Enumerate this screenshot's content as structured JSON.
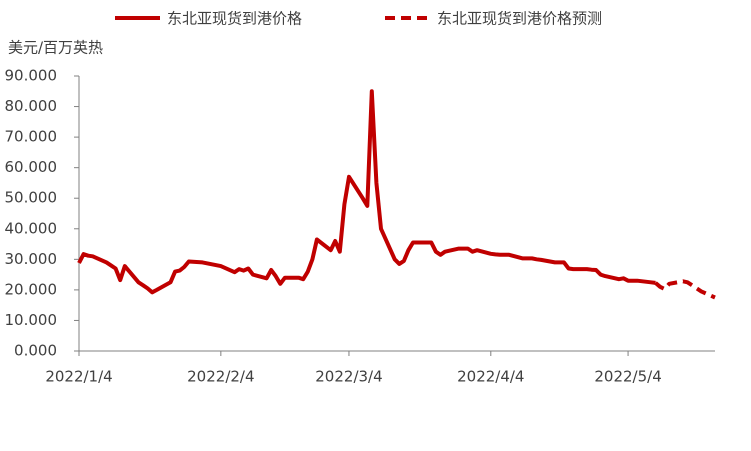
{
  "chart_data": {
    "type": "line",
    "y_label": "美元/百万英热",
    "x": [
      "2022/1/4",
      "2022/1/5",
      "2022/1/6",
      "2022/1/7",
      "2022/1/10",
      "2022/1/11",
      "2022/1/12",
      "2022/1/13",
      "2022/1/14",
      "2022/1/17",
      "2022/1/18",
      "2022/1/19",
      "2022/1/20",
      "2022/1/21",
      "2022/1/24",
      "2022/1/25",
      "2022/1/26",
      "2022/1/27",
      "2022/1/28",
      "2022/1/31",
      "2022/2/4",
      "2022/2/7",
      "2022/2/8",
      "2022/2/9",
      "2022/2/10",
      "2022/2/11",
      "2022/2/14",
      "2022/2/15",
      "2022/2/16",
      "2022/2/17",
      "2022/2/18",
      "2022/2/21",
      "2022/2/22",
      "2022/2/23",
      "2022/2/24",
      "2022/2/25",
      "2022/2/28",
      "2022/3/1",
      "2022/3/2",
      "2022/3/3",
      "2022/3/4",
      "2022/3/7",
      "2022/3/8",
      "2022/3/9",
      "2022/3/10",
      "2022/3/11",
      "2022/3/14",
      "2022/3/15",
      "2022/3/16",
      "2022/3/17",
      "2022/3/18",
      "2022/3/21",
      "2022/3/22",
      "2022/3/23",
      "2022/3/24",
      "2022/3/25",
      "2022/3/28",
      "2022/3/29",
      "2022/3/30",
      "2022/3/31",
      "2022/4/1",
      "2022/4/4",
      "2022/4/5",
      "2022/4/6",
      "2022/4/7",
      "2022/4/8",
      "2022/4/11",
      "2022/4/12",
      "2022/4/13",
      "2022/4/14",
      "2022/4/15",
      "2022/4/18",
      "2022/4/19",
      "2022/4/20",
      "2022/4/21",
      "2022/4/22",
      "2022/4/25",
      "2022/4/26",
      "2022/4/27",
      "2022/4/28",
      "2022/4/29",
      "2022/5/2",
      "2022/5/3",
      "2022/5/4",
      "2022/5/5",
      "2022/5/6",
      "2022/5/9",
      "2022/5/10",
      "2022/5/11",
      "2022/5/12",
      "2022/5/13",
      "2022/5/16",
      "2022/5/17",
      "2022/5/18",
      "2022/5/19",
      "2022/5/20",
      "2022/5/23"
    ],
    "series": [
      {
        "name": "东北亚现货到港价格",
        "color": "#c00000",
        "dashed": false,
        "values": [
          28.8,
          31.7,
          31.2,
          31,
          29,
          28,
          27,
          23.2,
          27.8,
          22.5,
          21.5,
          20.5,
          19.2,
          20,
          22.5,
          26,
          26.3,
          27.5,
          29.3,
          29,
          27.8,
          25.8,
          26.8,
          26.3,
          27,
          25,
          23.8,
          26.5,
          24.5,
          22,
          24,
          24,
          23.5,
          26,
          30,
          36.5,
          33,
          36,
          32.5,
          48,
          57,
          50,
          47.5,
          85,
          55,
          40,
          30,
          28.5,
          29.5,
          33,
          35.5,
          35.5,
          35.5,
          32.5,
          31.5,
          32.5,
          33.5,
          33.5,
          33.5,
          32.5,
          33,
          31.8,
          31.6,
          31.5,
          31.5,
          31.5,
          30.3,
          30.3,
          30.3,
          30,
          29.8,
          29,
          29,
          29,
          27,
          26.8,
          26.8,
          26.6,
          26.5,
          25,
          24.5,
          23.5,
          23.8,
          23,
          23,
          23,
          22.5,
          22.3,
          null,
          null,
          null,
          null,
          null,
          null,
          null,
          null,
          null
        ]
      },
      {
        "name": "东北亚现货到港价格预测",
        "color": "#c00000",
        "dashed": true,
        "values": [
          null,
          null,
          null,
          null,
          null,
          null,
          null,
          null,
          null,
          null,
          null,
          null,
          null,
          null,
          null,
          null,
          null,
          null,
          null,
          null,
          null,
          null,
          null,
          null,
          null,
          null,
          null,
          null,
          null,
          null,
          null,
          null,
          null,
          null,
          null,
          null,
          null,
          null,
          null,
          null,
          null,
          null,
          null,
          null,
          null,
          null,
          null,
          null,
          null,
          null,
          null,
          null,
          null,
          null,
          null,
          null,
          null,
          null,
          null,
          null,
          null,
          null,
          null,
          null,
          null,
          null,
          null,
          null,
          null,
          null,
          null,
          null,
          null,
          null,
          null,
          null,
          null,
          null,
          null,
          null,
          null,
          null,
          null,
          null,
          null,
          null,
          null,
          22.3,
          21,
          20.3,
          22,
          22.8,
          22.5,
          21.5,
          20.5,
          19.5,
          17.5
        ]
      }
    ],
    "xlim": [
      "2022/1/4",
      "2022/5/23"
    ],
    "xticks": [
      "2022/1/4",
      "2022/2/4",
      "2022/3/4",
      "2022/4/4",
      "2022/5/4"
    ],
    "ylim": [
      0,
      90
    ],
    "yticks": [
      {
        "value": 0,
        "label": "0.000"
      },
      {
        "value": 10,
        "label": "10.000"
      },
      {
        "value": 20,
        "label": "20.000"
      },
      {
        "value": 30,
        "label": "30.000"
      },
      {
        "value": 40,
        "label": "40.000"
      },
      {
        "value": 50,
        "label": "50.000"
      },
      {
        "value": 60,
        "label": "60.000"
      },
      {
        "value": 70,
        "label": "70.000"
      },
      {
        "value": 80,
        "label": "80.000"
      },
      {
        "value": 90,
        "label": "90.000"
      }
    ],
    "grid": false
  }
}
